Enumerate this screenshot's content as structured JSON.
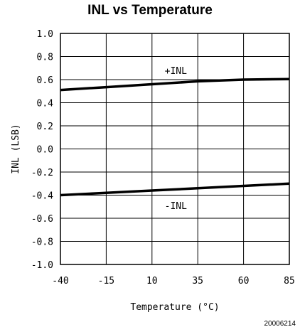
{
  "chart_data": {
    "type": "line",
    "title": "INL vs Temperature",
    "xlabel": "Temperature (°C)",
    "ylabel": "INL (LSB)",
    "xlim": [
      -40,
      85
    ],
    "ylim": [
      -1.0,
      1.0
    ],
    "xticks": [
      -40,
      -15,
      10,
      35,
      60,
      85
    ],
    "xtick_labels": [
      "-40",
      "-15",
      "10",
      "35",
      "60",
      "85"
    ],
    "yticks": [
      1.0,
      0.8,
      0.6,
      0.4,
      0.2,
      0.0,
      -0.2,
      -0.4,
      -0.6,
      -0.8,
      -1.0
    ],
    "ytick_labels": [
      "1.0",
      "0.8",
      "0.6",
      "0.4",
      "0.2",
      "0.0",
      "-0.2",
      "-0.4",
      "-0.6",
      "-0.8",
      "-1.0"
    ],
    "grid": true,
    "series": [
      {
        "name": "+INL",
        "x": [
          -40,
          -15,
          10,
          35,
          60,
          85
        ],
        "y": [
          0.51,
          0.535,
          0.56,
          0.585,
          0.6,
          0.605
        ],
        "color": "#000000"
      },
      {
        "name": "-INL",
        "x": [
          -40,
          -15,
          10,
          35,
          60,
          85
        ],
        "y": [
          -0.4,
          -0.38,
          -0.36,
          -0.34,
          -0.32,
          -0.3
        ],
        "color": "#000000"
      }
    ],
    "annotations": [
      {
        "text": "+INL",
        "x": 23,
        "y": 0.68
      },
      {
        "text": "-INL",
        "x": 23,
        "y": -0.49
      }
    ]
  },
  "figure_id": "20006214"
}
